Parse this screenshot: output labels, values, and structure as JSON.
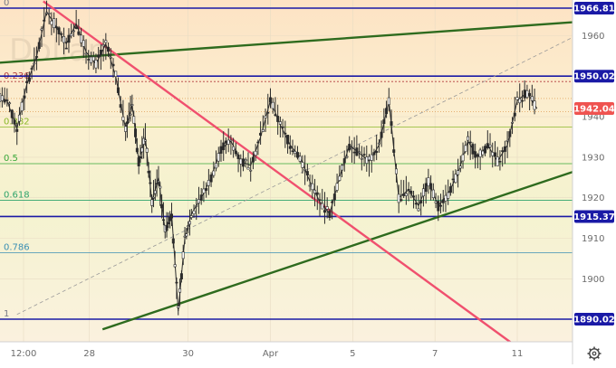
{
  "chart_data": {
    "type": "candlestick",
    "title": "",
    "watermark": "Dollar",
    "y_range": [
      1885,
      1968
    ],
    "x_labels": [
      {
        "label": "12:00",
        "day": 0
      },
      {
        "label": "28",
        "day": 2
      },
      {
        "label": "30",
        "day": 5
      },
      {
        "label": "Apr",
        "day": 7.5
      },
      {
        "label": "5",
        "day": 10
      },
      {
        "label": "7",
        "day": 12.5
      },
      {
        "label": "11",
        "day": 15
      }
    ],
    "x_range": [
      0,
      17.5
    ],
    "y_ticks": [
      1890,
      1900,
      1910,
      1920,
      1930,
      1940,
      1950,
      1960
    ],
    "horizontal_levels": [
      {
        "value": 1966.81,
        "label": "1966.81",
        "color": "#1a1aa6"
      },
      {
        "value": 1950.02,
        "label": "1950.02",
        "color": "#1a1aa6"
      },
      {
        "value": 1915.37,
        "label": "1915.37",
        "color": "#1a1aa6"
      },
      {
        "value": 1890.02,
        "label": "1890.02",
        "color": "#1a1aa6"
      }
    ],
    "current_price": {
      "value": 1942.04,
      "label": "1942.04",
      "color": "#ef5350"
    },
    "fib_levels": [
      {
        "ratio": "0",
        "value": 1966.81,
        "color": "#787b86"
      },
      {
        "ratio": "0.236",
        "value": 1948.69,
        "color": "#b23b3b"
      },
      {
        "ratio": "0.382",
        "value": 1937.48,
        "color": "#8bb82a"
      },
      {
        "ratio": "0.5",
        "value": 1928.42,
        "color": "#3aa83a"
      },
      {
        "ratio": "0.618",
        "value": 1919.36,
        "color": "#2ea36b"
      },
      {
        "ratio": "0.786",
        "value": 1906.45,
        "color": "#3b8fb3"
      },
      {
        "ratio": "1",
        "value": 1890.02,
        "color": "#787b86"
      }
    ],
    "trend_lines": [
      {
        "name": "upper-channel",
        "color": "#2e6b1e",
        "from": [
          -0.8,
          1953.3
        ],
        "to": [
          17.5,
          1963.8
        ]
      },
      {
        "name": "lower-channel",
        "color": "#2e6b1e",
        "from": [
          2.4,
          1887.5
        ],
        "to": [
          17.5,
          1928.6
        ]
      },
      {
        "name": "descending",
        "color": "#f0506e",
        "from": [
          0.6,
          1968.5
        ],
        "to": [
          14.8,
          1884.3
        ]
      },
      {
        "name": "fib-diagonal",
        "color": "#999999",
        "dashed": true,
        "from": [
          -0.2,
          1891.2
        ],
        "to": [
          17.5,
          1962.9
        ]
      }
    ],
    "price_series": [
      [
        -0.8,
        1945
      ],
      [
        -0.5,
        1944
      ],
      [
        -0.2,
        1937
      ],
      [
        0.1,
        1948
      ],
      [
        0.4,
        1955
      ],
      [
        0.7,
        1966
      ],
      [
        1.0,
        1962
      ],
      [
        1.3,
        1958
      ],
      [
        1.6,
        1963
      ],
      [
        1.9,
        1956
      ],
      [
        2.2,
        1953
      ],
      [
        2.5,
        1958
      ],
      [
        2.8,
        1950
      ],
      [
        3.1,
        1937
      ],
      [
        3.3,
        1943
      ],
      [
        3.5,
        1929
      ],
      [
        3.7,
        1935
      ],
      [
        3.9,
        1919
      ],
      [
        4.1,
        1925
      ],
      [
        4.3,
        1912
      ],
      [
        4.5,
        1916
      ],
      [
        4.7,
        1892
      ],
      [
        4.9,
        1910
      ],
      [
        5.1,
        1916
      ],
      [
        5.4,
        1920
      ],
      [
        5.7,
        1925
      ],
      [
        6.0,
        1932
      ],
      [
        6.3,
        1934
      ],
      [
        6.6,
        1929
      ],
      [
        6.9,
        1928
      ],
      [
        7.2,
        1935
      ],
      [
        7.5,
        1944
      ],
      [
        7.8,
        1938
      ],
      [
        8.1,
        1933
      ],
      [
        8.4,
        1930
      ],
      [
        8.7,
        1924
      ],
      [
        9.0,
        1919
      ],
      [
        9.3,
        1916
      ],
      [
        9.6,
        1925
      ],
      [
        9.9,
        1933
      ],
      [
        10.2,
        1931
      ],
      [
        10.5,
        1929
      ],
      [
        10.8,
        1933
      ],
      [
        11.1,
        1944
      ],
      [
        11.4,
        1920
      ],
      [
        11.7,
        1922
      ],
      [
        12.0,
        1918
      ],
      [
        12.3,
        1924
      ],
      [
        12.6,
        1918
      ],
      [
        12.9,
        1921
      ],
      [
        13.2,
        1926
      ],
      [
        13.5,
        1934
      ],
      [
        13.8,
        1930
      ],
      [
        14.1,
        1933
      ],
      [
        14.4,
        1929
      ],
      [
        14.7,
        1933
      ],
      [
        15.0,
        1944
      ],
      [
        15.3,
        1946
      ],
      [
        15.6,
        1942
      ]
    ]
  },
  "toolbar": {
    "settings_icon": "gear-icon"
  }
}
